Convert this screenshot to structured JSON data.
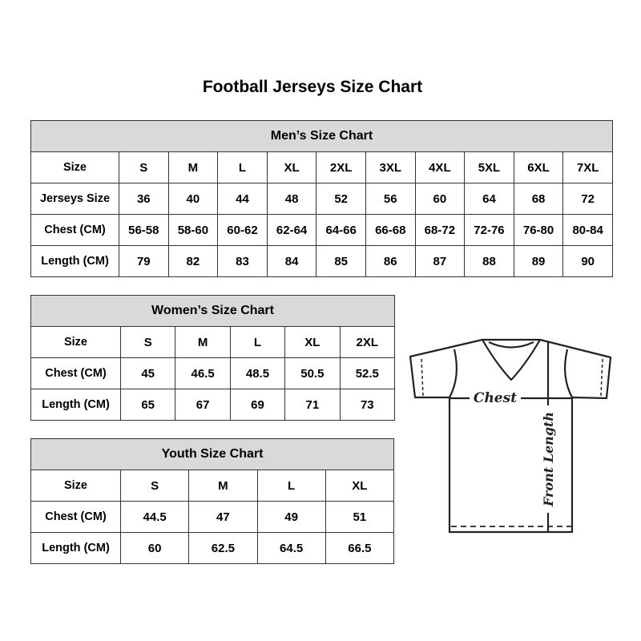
{
  "title": "Football Jerseys Size Chart",
  "tables": {
    "men": {
      "heading": "Men’s Size Chart",
      "rows": [
        [
          "Size",
          "S",
          "M",
          "L",
          "XL",
          "2XL",
          "3XL",
          "4XL",
          "5XL",
          "6XL",
          "7XL"
        ],
        [
          "Jerseys Size",
          "36",
          "40",
          "44",
          "48",
          "52",
          "56",
          "60",
          "64",
          "68",
          "72"
        ],
        [
          "Chest (CM)",
          "56-58",
          "58-60",
          "60-62",
          "62-64",
          "64-66",
          "66-68",
          "68-72",
          "72-76",
          "76-80",
          "80-84"
        ],
        [
          "Length (CM)",
          "79",
          "82",
          "83",
          "84",
          "85",
          "86",
          "87",
          "88",
          "89",
          "90"
        ]
      ]
    },
    "women": {
      "heading": "Women’s Size Chart",
      "rows": [
        [
          "Size",
          "S",
          "M",
          "L",
          "XL",
          "2XL"
        ],
        [
          "Chest (CM)",
          "45",
          "46.5",
          "48.5",
          "50.5",
          "52.5"
        ],
        [
          "Length (CM)",
          "65",
          "67",
          "69",
          "71",
          "73"
        ]
      ]
    },
    "youth": {
      "heading": "Youth Size Chart",
      "rows": [
        [
          "Size",
          "S",
          "M",
          "L",
          "XL"
        ],
        [
          "Chest (CM)",
          "44.5",
          "47",
          "49",
          "51"
        ],
        [
          "Length (CM)",
          "60",
          "62.5",
          "64.5",
          "66.5"
        ]
      ]
    }
  },
  "diagram": {
    "chest_label": "Chest",
    "length_label": "Front Length"
  },
  "colors": {
    "header_bg": "#d9d9d9",
    "border": "#333333"
  }
}
